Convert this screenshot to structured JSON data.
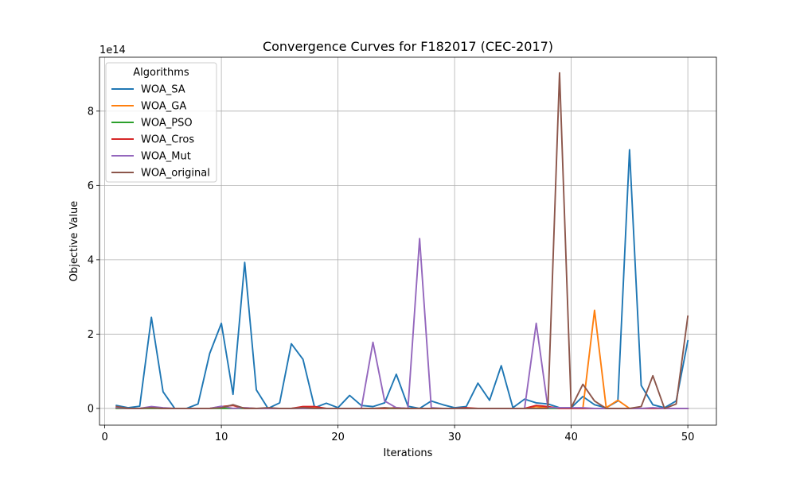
{
  "chart_data": {
    "type": "line",
    "title": "Convergence Curves for F182017 (CEC-2017)",
    "xlabel": "Iterations",
    "ylabel": "Objective Value",
    "y_offset_label": "1e14",
    "xlim": [
      -0.45,
      52.45
    ],
    "ylim": [
      -0.45,
      9.45
    ],
    "xticks": [
      0,
      10,
      20,
      30,
      40,
      50
    ],
    "yticks": [
      0,
      2,
      4,
      6,
      8
    ],
    "grid": true,
    "legend_title": "Algorithms",
    "legend_position": "upper-left",
    "x": [
      1,
      2,
      3,
      4,
      5,
      6,
      7,
      8,
      9,
      10,
      11,
      12,
      13,
      14,
      15,
      16,
      17,
      18,
      19,
      20,
      21,
      22,
      23,
      24,
      25,
      26,
      27,
      28,
      29,
      30,
      31,
      32,
      33,
      34,
      35,
      36,
      37,
      38,
      39,
      40,
      41,
      42,
      43,
      44,
      45,
      46,
      47,
      48,
      49,
      50
    ],
    "series": [
      {
        "name": "WOA_SA",
        "color": "#1f77b4",
        "values": [
          0.08,
          0.02,
          0.06,
          2.45,
          0.45,
          0.0,
          0.0,
          0.12,
          1.48,
          2.29,
          0.38,
          3.93,
          0.5,
          0.0,
          0.15,
          1.74,
          1.32,
          0.02,
          0.14,
          0.02,
          0.35,
          0.08,
          0.05,
          0.15,
          0.92,
          0.06,
          0.0,
          0.2,
          0.1,
          0.02,
          0.05,
          0.68,
          0.22,
          1.15,
          0.02,
          0.25,
          0.15,
          0.12,
          0.02,
          0.02,
          0.32,
          0.1,
          0.02,
          0.2,
          6.96,
          0.62,
          0.1,
          0.02,
          0.2,
          1.82
        ]
      },
      {
        "name": "WOA_GA",
        "color": "#ff7f0e",
        "values": [
          0.0,
          0.0,
          0.0,
          0.02,
          0.0,
          0.0,
          0.0,
          0.0,
          0.0,
          0.02,
          0.0,
          0.02,
          0.0,
          0.0,
          0.0,
          0.0,
          0.02,
          0.02,
          0.0,
          0.0,
          0.0,
          0.0,
          0.0,
          0.0,
          0.0,
          0.0,
          0.0,
          0.0,
          0.0,
          0.0,
          0.0,
          0.0,
          0.0,
          0.0,
          0.0,
          0.0,
          0.05,
          0.02,
          0.0,
          0.0,
          0.0,
          2.64,
          0.02,
          0.22,
          0.0,
          0.0,
          0.0,
          0.0,
          0.0,
          0.0
        ]
      },
      {
        "name": "WOA_PSO",
        "color": "#2ca02c",
        "values": [
          0.0,
          0.0,
          0.0,
          0.0,
          0.0,
          0.0,
          0.0,
          0.0,
          0.0,
          0.0,
          0.0,
          0.0,
          0.0,
          0.0,
          0.0,
          0.0,
          0.0,
          0.0,
          0.0,
          0.0,
          0.0,
          0.0,
          0.0,
          0.0,
          0.0,
          0.0,
          0.0,
          0.0,
          0.0,
          0.0,
          0.0,
          0.0,
          0.0,
          0.0,
          0.0,
          0.0,
          0.0,
          0.0,
          0.0,
          0.0,
          0.0,
          0.0,
          0.0,
          0.0,
          0.0,
          0.0,
          0.0,
          0.0,
          0.0,
          0.0
        ]
      },
      {
        "name": "WOA_Cros",
        "color": "#d62728",
        "values": [
          0.02,
          0.0,
          0.0,
          0.02,
          0.0,
          0.0,
          0.0,
          0.0,
          0.0,
          0.05,
          0.08,
          0.0,
          0.0,
          0.0,
          0.0,
          0.0,
          0.05,
          0.05,
          0.0,
          0.0,
          0.0,
          0.0,
          0.0,
          0.0,
          0.02,
          0.0,
          0.0,
          0.0,
          0.0,
          0.0,
          0.02,
          0.0,
          0.0,
          0.0,
          0.0,
          0.0,
          0.08,
          0.05,
          0.0,
          0.0,
          0.0,
          0.0,
          0.0,
          0.0,
          0.0,
          0.0,
          0.0,
          0.0,
          0.0,
          0.0
        ]
      },
      {
        "name": "WOA_Mut",
        "color": "#9467bd",
        "values": [
          0.02,
          0.0,
          0.0,
          0.05,
          0.02,
          0.0,
          0.0,
          0.0,
          0.0,
          0.06,
          0.0,
          0.02,
          0.0,
          0.0,
          0.0,
          0.0,
          0.0,
          0.0,
          0.0,
          0.0,
          0.0,
          0.0,
          1.78,
          0.2,
          0.02,
          0.0,
          4.57,
          0.02,
          0.0,
          0.0,
          0.0,
          0.0,
          0.0,
          0.0,
          0.0,
          0.0,
          2.29,
          0.02,
          0.02,
          0.02,
          0.02,
          0.0,
          0.0,
          0.0,
          0.0,
          0.0,
          0.02,
          0.0,
          0.0,
          0.0
        ]
      },
      {
        "name": "WOA_original",
        "color": "#8c564b",
        "values": [
          0.05,
          0.0,
          0.0,
          0.02,
          0.0,
          0.0,
          0.0,
          0.0,
          0.0,
          0.02,
          0.1,
          0.0,
          0.0,
          0.02,
          0.0,
          0.0,
          0.02,
          0.0,
          0.0,
          0.0,
          0.0,
          0.0,
          0.0,
          0.02,
          0.0,
          0.0,
          0.0,
          0.0,
          0.0,
          0.0,
          0.0,
          0.0,
          0.0,
          0.0,
          0.0,
          0.0,
          0.0,
          0.0,
          9.03,
          0.02,
          0.65,
          0.2,
          0.0,
          0.0,
          0.0,
          0.05,
          0.88,
          0.0,
          0.12,
          2.48
        ]
      }
    ]
  }
}
